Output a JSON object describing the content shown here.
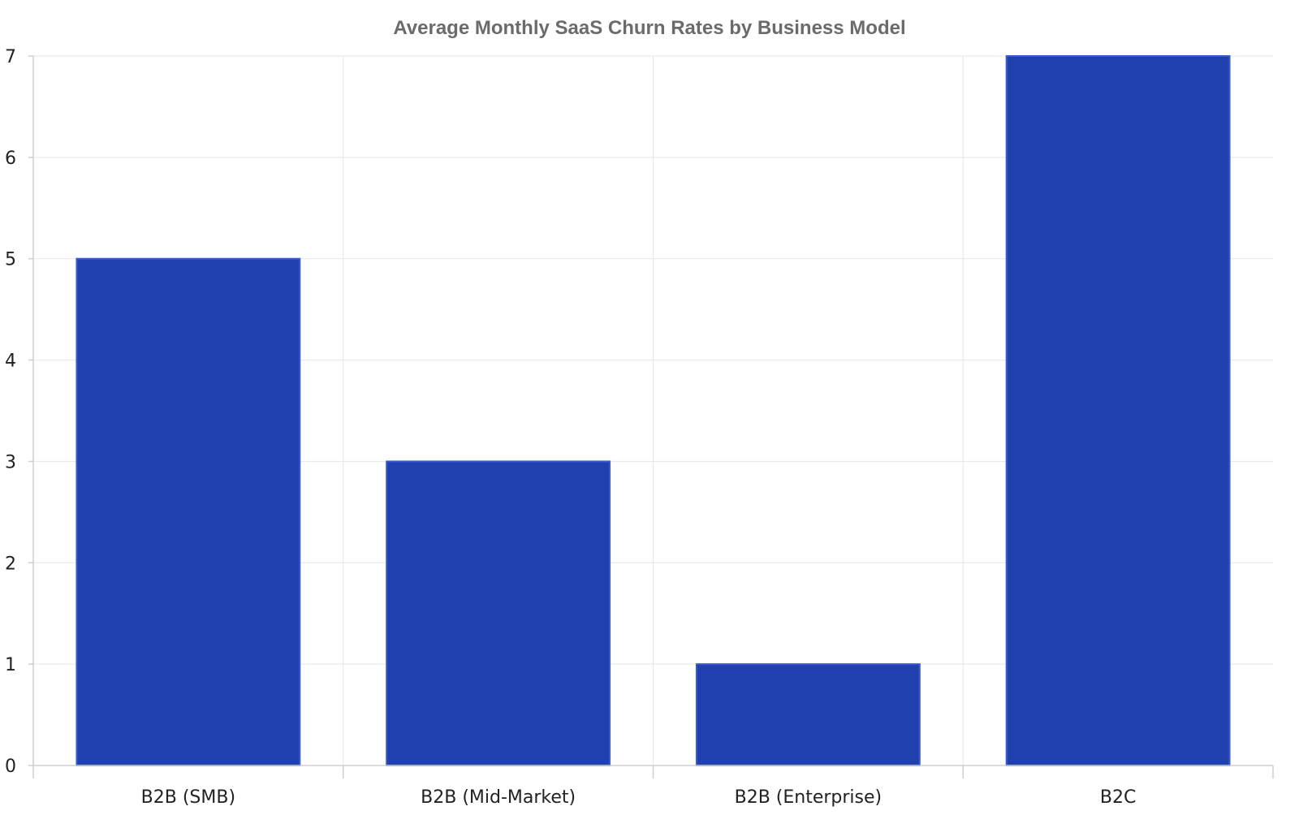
{
  "chart_data": {
    "type": "bar",
    "title": "Average Monthly SaaS Churn Rates by Business Model",
    "xlabel": "",
    "ylabel": "",
    "categories": [
      "B2B (SMB)",
      "B2B (Mid-Market)",
      "B2B (Enterprise)",
      "B2C"
    ],
    "values": [
      5,
      3,
      1,
      7
    ],
    "ylim": [
      0,
      7
    ],
    "yticks": [
      "0",
      "1",
      "2",
      "3",
      "4",
      "5",
      "6",
      "7"
    ],
    "grid": true,
    "legend": "none",
    "colors": {
      "bar_fill": "#1f40ad",
      "bar_edge": "#3a5bd0"
    }
  }
}
